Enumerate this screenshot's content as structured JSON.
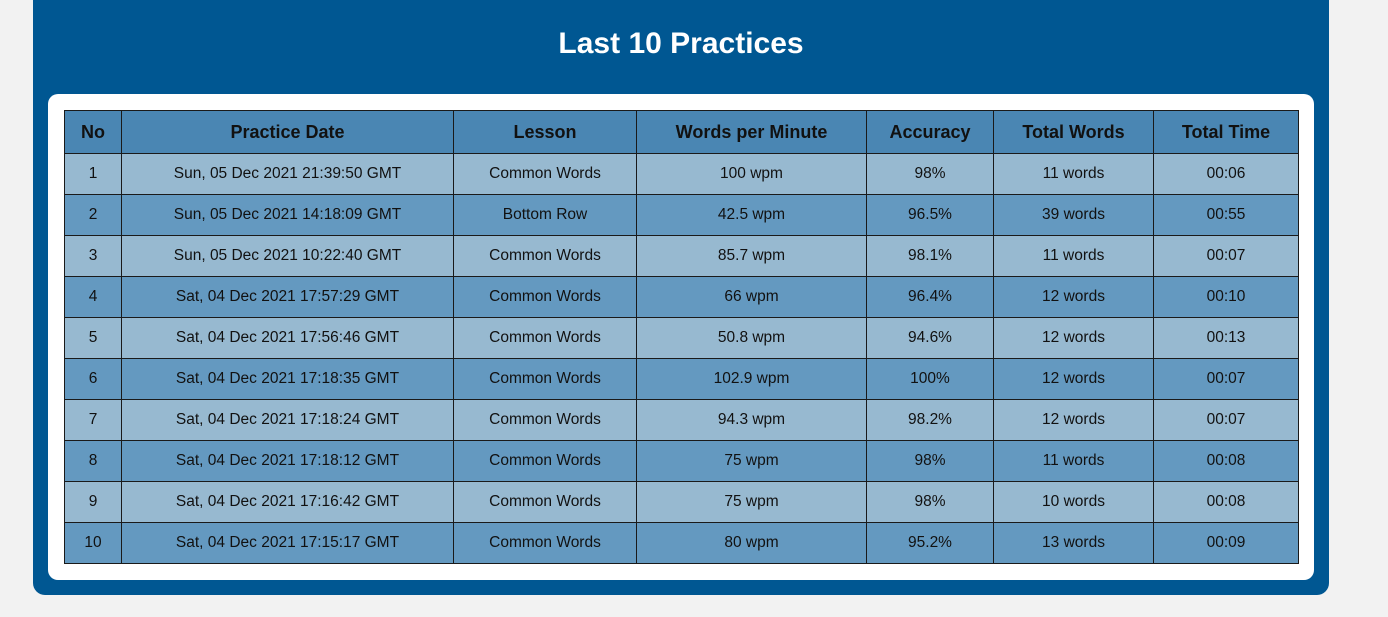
{
  "page": {
    "title": "Last 10 Practices"
  },
  "table": {
    "headers": [
      "No",
      "Practice Date",
      "Lesson",
      "Words per Minute",
      "Accuracy",
      "Total Words",
      "Total Time"
    ],
    "rows": [
      [
        "1",
        "Sun, 05 Dec 2021 21:39:50 GMT",
        "Common Words",
        "100 wpm",
        "98%",
        "11 words",
        "00:06"
      ],
      [
        "2",
        "Sun, 05 Dec 2021 14:18:09 GMT",
        "Bottom Row",
        "42.5 wpm",
        "96.5%",
        "39 words",
        "00:55"
      ],
      [
        "3",
        "Sun, 05 Dec 2021 10:22:40 GMT",
        "Common Words",
        "85.7 wpm",
        "98.1%",
        "11 words",
        "00:07"
      ],
      [
        "4",
        "Sat, 04 Dec 2021 17:57:29 GMT",
        "Common Words",
        "66 wpm",
        "96.4%",
        "12 words",
        "00:10"
      ],
      [
        "5",
        "Sat, 04 Dec 2021 17:56:46 GMT",
        "Common Words",
        "50.8 wpm",
        "94.6%",
        "12 words",
        "00:13"
      ],
      [
        "6",
        "Sat, 04 Dec 2021 17:18:35 GMT",
        "Common Words",
        "102.9 wpm",
        "100%",
        "12 words",
        "00:07"
      ],
      [
        "7",
        "Sat, 04 Dec 2021 17:18:24 GMT",
        "Common Words",
        "94.3 wpm",
        "98.2%",
        "12 words",
        "00:07"
      ],
      [
        "8",
        "Sat, 04 Dec 2021 17:18:12 GMT",
        "Common Words",
        "75 wpm",
        "98%",
        "11 words",
        "00:08"
      ],
      [
        "9",
        "Sat, 04 Dec 2021 17:16:42 GMT",
        "Common Words",
        "75 wpm",
        "98%",
        "10 words",
        "00:08"
      ],
      [
        "10",
        "Sat, 04 Dec 2021 17:15:17 GMT",
        "Common Words",
        "80 wpm",
        "95.2%",
        "13 words",
        "00:09"
      ]
    ]
  },
  "colors": {
    "panel": "#005792",
    "header_row": "#4a86b3",
    "row_light": "#97b9d0",
    "row_dark": "#6499c0",
    "page_background": "#f2f2f2"
  }
}
